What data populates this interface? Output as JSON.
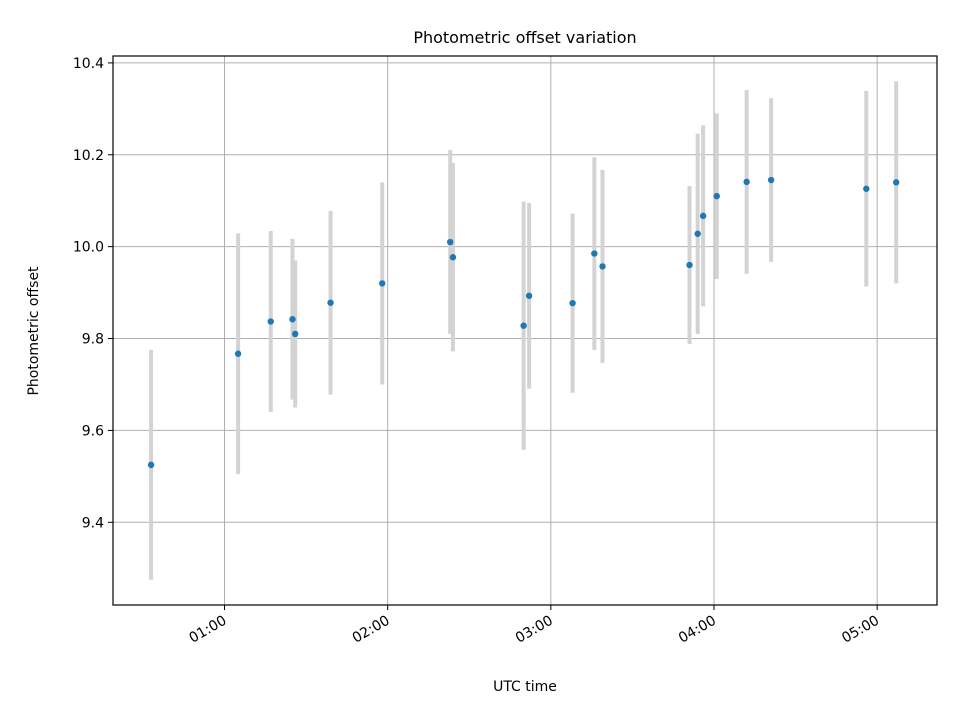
{
  "chart_data": {
    "type": "scatter",
    "title": "Photometric offset variation",
    "xlabel": "UTC time",
    "ylabel": "Photometric offset",
    "x_unit": "time (HH:MM, UTC)",
    "xlim": [
      "00:19",
      "05:22"
    ],
    "ylim": [
      9.22,
      10.415
    ],
    "x_ticks": [
      "01:00",
      "02:00",
      "03:00",
      "04:00",
      "05:00"
    ],
    "y_ticks": [
      "9.4",
      "9.6",
      "9.8",
      "10.0",
      "10.2",
      "10.4"
    ],
    "grid": true,
    "error_bars": true,
    "colors": {
      "marker": "#1f77b4",
      "error_bar": "#d3d3d3",
      "grid": "#b0b0b0"
    },
    "points": [
      {
        "x": "00:33",
        "y": 9.525,
        "yerr": 0.25
      },
      {
        "x": "01:05",
        "y": 9.767,
        "yerr": 0.262
      },
      {
        "x": "01:17",
        "y": 9.837,
        "yerr": 0.197
      },
      {
        "x": "01:25",
        "y": 9.842,
        "yerr": 0.175
      },
      {
        "x": "01:26",
        "y": 9.81,
        "yerr": 0.16
      },
      {
        "x": "01:39",
        "y": 9.878,
        "yerr": 0.2
      },
      {
        "x": "01:58",
        "y": 9.92,
        "yerr": 0.22
      },
      {
        "x": "02:23",
        "y": 10.01,
        "yerr": 0.2
      },
      {
        "x": "02:24",
        "y": 9.977,
        "yerr": 0.205
      },
      {
        "x": "02:50",
        "y": 9.828,
        "yerr": 0.27
      },
      {
        "x": "02:52",
        "y": 9.893,
        "yerr": 0.202
      },
      {
        "x": "03:08",
        "y": 9.877,
        "yerr": 0.195
      },
      {
        "x": "03:16",
        "y": 9.985,
        "yerr": 0.21
      },
      {
        "x": "03:19",
        "y": 9.957,
        "yerr": 0.21
      },
      {
        "x": "03:51",
        "y": 9.96,
        "yerr": 0.172
      },
      {
        "x": "03:54",
        "y": 10.028,
        "yerr": 0.218
      },
      {
        "x": "03:56",
        "y": 10.067,
        "yerr": 0.197
      },
      {
        "x": "04:01",
        "y": 10.11,
        "yerr": 0.18
      },
      {
        "x": "04:12",
        "y": 10.141,
        "yerr": 0.2
      },
      {
        "x": "04:21",
        "y": 10.145,
        "yerr": 0.178
      },
      {
        "x": "04:56",
        "y": 10.126,
        "yerr": 0.213
      },
      {
        "x": "05:07",
        "y": 10.14,
        "yerr": 0.22
      }
    ]
  }
}
